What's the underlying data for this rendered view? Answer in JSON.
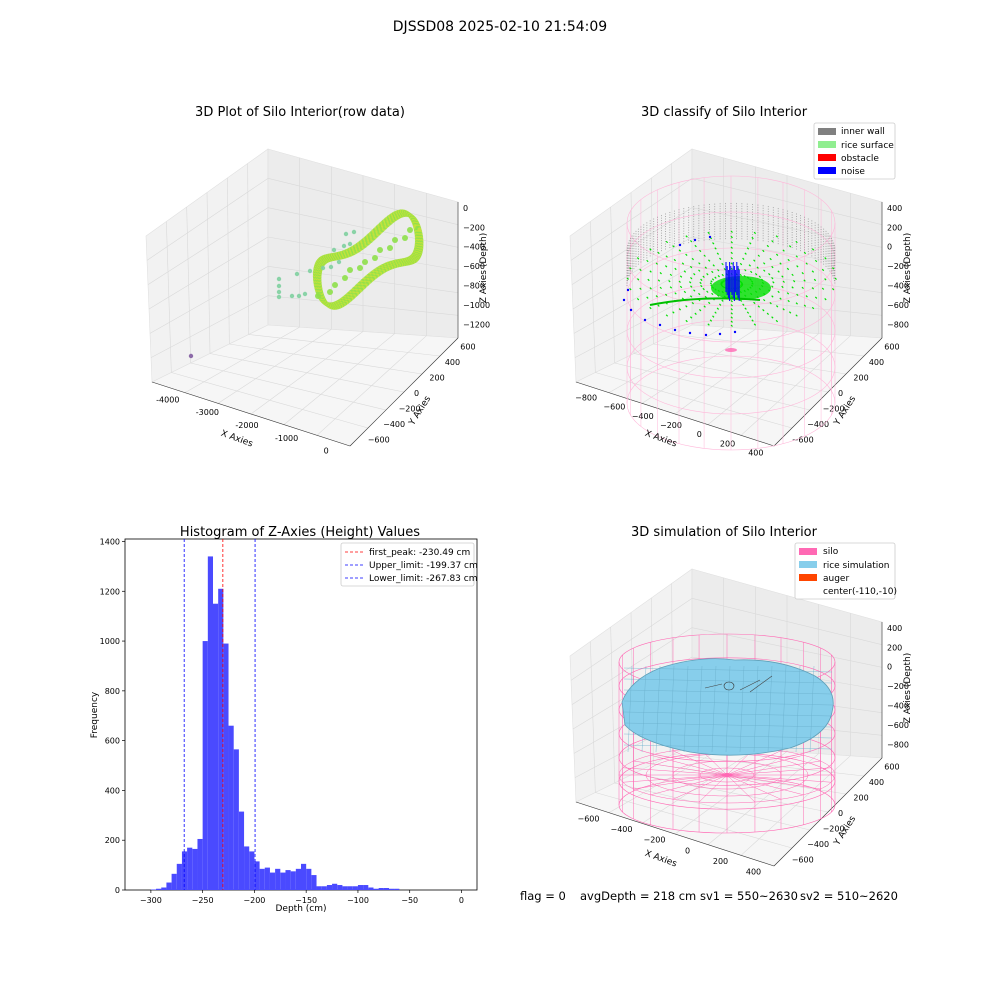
{
  "suptitle": "DJSSD08 2025-02-10 21:54:09",
  "footer": {
    "flag": "flag = 0",
    "avg": "avgDepth = 218 cm",
    "sv1": "sv1 = 550~2630",
    "sv2": "sv2 = 510~2620"
  },
  "chart_data": [
    {
      "type": "scatter",
      "title": "3D Plot of Silo Interior(row data)",
      "xlabel": "X Axies",
      "ylabel": "Y Axies",
      "zlabel": "Z Axies (Depth)",
      "x_ticks": [
        "-4000",
        "-3000",
        "-2000",
        "-1000",
        "0"
      ],
      "y_ticks": [
        "600",
        "400",
        "200",
        "0",
        "−200",
        "−400",
        "−600"
      ],
      "z_ticks": [
        "0",
        "−200",
        "−400",
        "−600",
        "−800",
        "−1000",
        "−1200"
      ],
      "colors": [
        "#8ee04a",
        "#c8e23a",
        "#5ccf7c",
        "#7fd0a0",
        "#8c6aa8"
      ]
    },
    {
      "type": "scatter",
      "title": "3D classify of Silo Interior",
      "xlabel": "X Axies",
      "ylabel": "Y Axies",
      "zlabel": "Z Axies (Depth)",
      "x_ticks": [
        "−800",
        "−600",
        "−400",
        "−200",
        "0",
        "200",
        "400"
      ],
      "y_ticks": [
        "600",
        "400",
        "200",
        "0",
        "−200",
        "−400",
        "−600"
      ],
      "z_ticks": [
        "400",
        "200",
        "0",
        "−200",
        "−400",
        "−600",
        "−800"
      ],
      "legend": [
        {
          "label": "inner wall",
          "color": "#808080"
        },
        {
          "label": "rice surface",
          "color": "#90ee90"
        },
        {
          "label": "obstacle",
          "color": "#ff0000"
        },
        {
          "label": "noise",
          "color": "#0000ff"
        }
      ],
      "legend_position": "top-right"
    },
    {
      "type": "bar",
      "title": "Histogram of Z-Axies (Height) Values",
      "xlabel": "Depth (cm)",
      "ylabel": "Frequency",
      "xlim": [
        -325,
        15
      ],
      "ylim": [
        0,
        1410
      ],
      "x_ticks": [
        -300,
        -250,
        -200,
        -150,
        -100,
        -50,
        0
      ],
      "y_ticks": [
        0,
        200,
        400,
        600,
        800,
        1000,
        1200,
        1400
      ],
      "bin_start": -305,
      "bin_width": 5,
      "values": [
        0,
        2,
        5,
        10,
        30,
        65,
        105,
        155,
        170,
        165,
        205,
        1000,
        1340,
        1150,
        1210,
        990,
        660,
        565,
        315,
        175,
        155,
        115,
        85,
        90,
        70,
        85,
        70,
        80,
        75,
        85,
        105,
        85,
        60,
        15,
        15,
        20,
        25,
        20,
        15,
        15,
        15,
        20,
        20,
        10,
        5,
        8,
        8,
        5,
        5
      ],
      "bar_color": "#4a4aff",
      "lines": [
        {
          "label": "first_peak: -230.49 cm",
          "x": -230.49,
          "color": "#ff0000"
        },
        {
          "label": "Upper_limit: -199.37 cm",
          "x": -199.37,
          "color": "#0000ff"
        },
        {
          "label": "Lower_limit: -267.83 cm",
          "x": -267.83,
          "color": "#0000ff"
        }
      ],
      "legend_position": "top-right"
    },
    {
      "type": "surface",
      "title": "3D simulation of Silo Interior",
      "xlabel": "X Axies",
      "ylabel": "Y Axies",
      "zlabel": "Z Axies (Depth)",
      "x_ticks": [
        "−600",
        "−400",
        "−200",
        "0",
        "200",
        "400"
      ],
      "y_ticks": [
        "600",
        "400",
        "200",
        "0",
        "−200",
        "−400",
        "−600"
      ],
      "z_ticks": [
        "400",
        "200",
        "0",
        "−200",
        "−400",
        "−600",
        "−800"
      ],
      "legend": [
        {
          "label": "silo",
          "color": "#ff69b4"
        },
        {
          "label": "rice simulation",
          "color": "#87ceeb"
        },
        {
          "label": "auger",
          "color": "#ff4500"
        },
        {
          "label": "center(-110,-10)",
          "color": ""
        }
      ],
      "legend_position": "top-right"
    }
  ]
}
